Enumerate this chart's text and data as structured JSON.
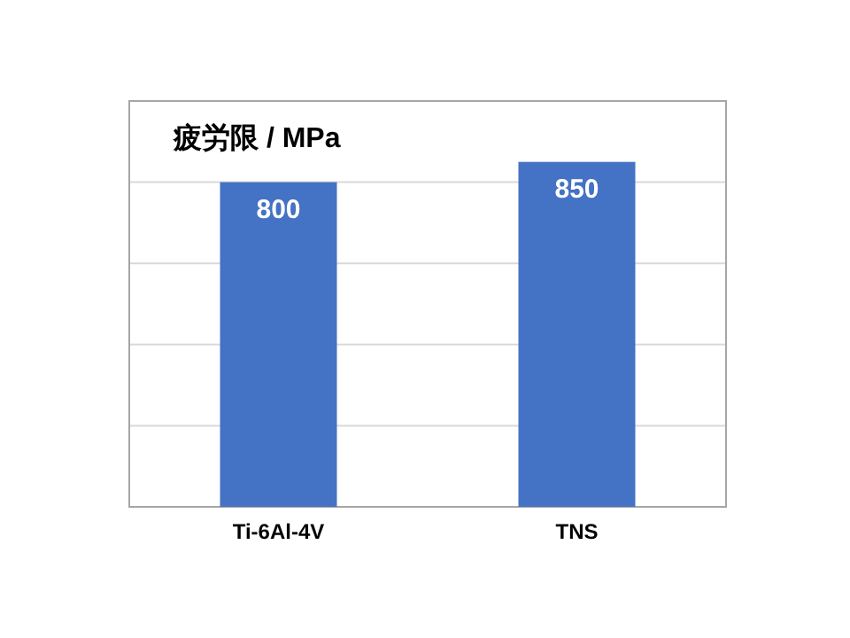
{
  "chart_data": {
    "type": "bar",
    "ylabel": "疲労限 / MPa",
    "categories": [
      "Ti-6Al-4V",
      "TNS"
    ],
    "values": [
      800,
      850
    ],
    "color": "#4472c4",
    "ylim": [
      0,
      1000
    ],
    "yticks": [
      {
        "value": 0,
        "label": null
      },
      {
        "value": 200,
        "label": null
      },
      {
        "value": 400,
        "label": null
      },
      {
        "value": 600,
        "label": null
      },
      {
        "value": 800,
        "label": null
      },
      {
        "value": 1000,
        "label": null
      }
    ],
    "grid": "y",
    "data_labels": true,
    "tick_labels": "x"
  }
}
